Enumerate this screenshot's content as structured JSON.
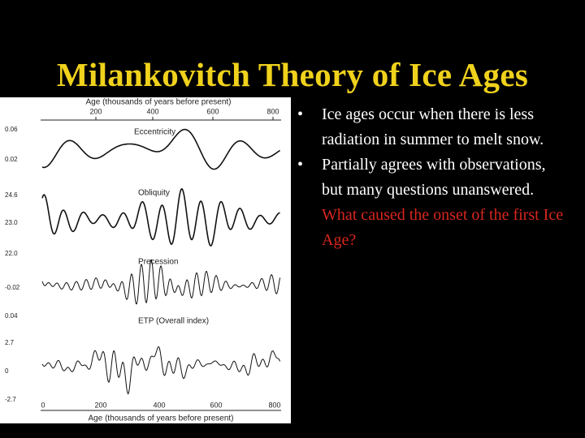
{
  "title": "Milankovitch Theory of Ice Ages",
  "figure": {
    "top_axis_label": "Age (thousands of years before present)",
    "top_ticks": [
      "200",
      "400",
      "600",
      "800"
    ],
    "bottom_ticks": [
      "0",
      "200",
      "400",
      "600",
      "800"
    ],
    "bottom_axis_label": "Age (thousands of years before present)",
    "panels": [
      {
        "label": "Eccentricity",
        "y_labels": [
          "0.06",
          "0.02"
        ]
      },
      {
        "label": "Obliquity",
        "y_labels": [
          "24.6",
          "23.0",
          "22.0"
        ]
      },
      {
        "label": "Precession",
        "y_labels": [
          "-0.02",
          "0.04"
        ]
      },
      {
        "label": "ETP (Overall index)",
        "y_labels": [
          "2.7",
          "0",
          "-2.7"
        ]
      }
    ]
  },
  "bullets": [
    "Ice ages occur when there is less radiation in summer to melt snow.",
    "Partially agrees with observations, but many questions unanswered."
  ],
  "note": "What caused the onset of the first Ice Age?"
}
